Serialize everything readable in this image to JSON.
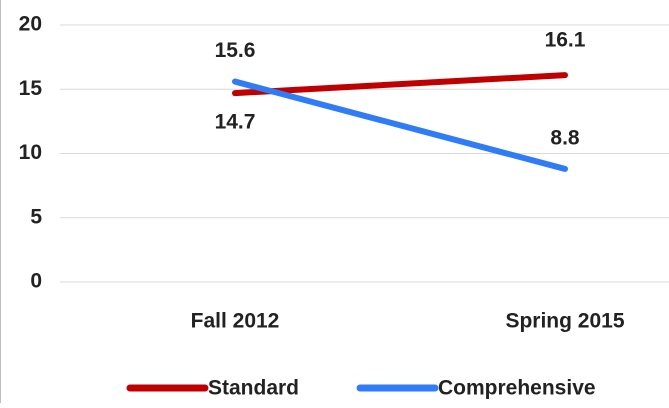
{
  "chart_data": {
    "type": "line",
    "categories": [
      "Fall 2012",
      "Spring 2015"
    ],
    "series": [
      {
        "name": "Standard",
        "color": "#c00000",
        "values": [
          14.7,
          16.1
        ]
      },
      {
        "name": "Comprehensive",
        "color": "#2f7cf6",
        "values": [
          15.6,
          8.8
        ]
      }
    ],
    "ylim": [
      0,
      20
    ],
    "yticks": [
      0,
      5,
      10,
      15,
      20
    ],
    "grid": true,
    "legend": "bottom"
  }
}
